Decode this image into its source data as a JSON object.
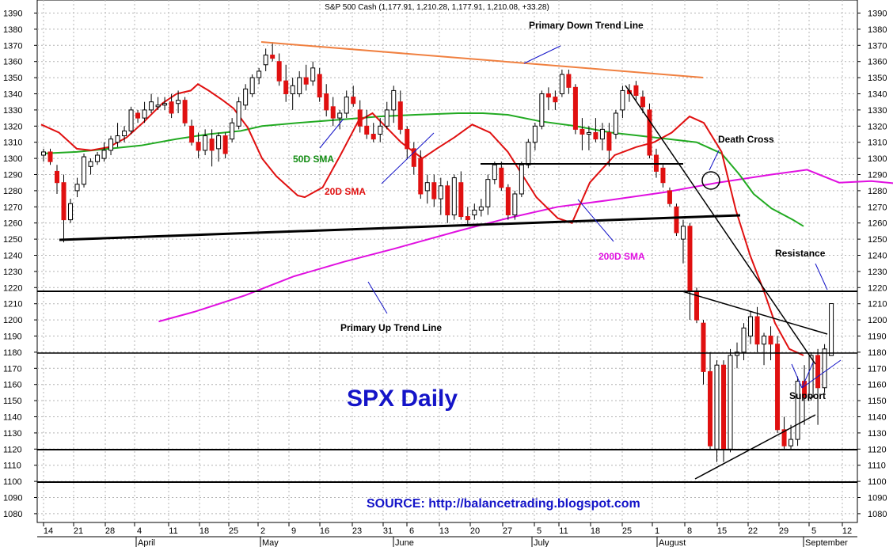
{
  "chart_data": {
    "type": "candlestick",
    "title": "S&P 500 Cash (1,177.91, 1,210.28, 1,177.91, 1,210.08, +33.28)",
    "headline": "SPX Daily",
    "source": "SOURCE: http://balancetrading.blogspot.com",
    "y_ticks": [
      1080,
      1090,
      1100,
      1110,
      1120,
      1130,
      1140,
      1150,
      1160,
      1170,
      1180,
      1190,
      1200,
      1210,
      1220,
      1230,
      1240,
      1250,
      1260,
      1270,
      1280,
      1290,
      1300,
      1310,
      1320,
      1330,
      1340,
      1350,
      1360,
      1370,
      1380,
      1390
    ],
    "ylim": [
      1075,
      1395
    ],
    "x_day_labels": [
      "14",
      "21",
      "28",
      "4",
      "11",
      "18",
      "25",
      "2",
      "9",
      "16",
      "23",
      "31",
      "6",
      "13",
      "20",
      "27",
      "5",
      "11",
      "18",
      "25",
      "1",
      "8",
      "15",
      "22",
      "29",
      "5",
      "12"
    ],
    "month_labels": [
      "April",
      "May",
      "June",
      "July",
      "August",
      "September"
    ],
    "grid": true,
    "candles": [
      [
        1302,
        1306,
        1298,
        1304
      ],
      [
        1304,
        1306,
        1296,
        1298
      ],
      [
        1292,
        1296,
        1278,
        1285
      ],
      [
        1285,
        1290,
        1248,
        1262
      ],
      [
        1262,
        1275,
        1260,
        1272
      ],
      [
        1280,
        1288,
        1276,
        1284
      ],
      [
        1284,
        1303,
        1282,
        1301
      ],
      [
        1295,
        1300,
        1290,
        1298
      ],
      [
        1298,
        1304,
        1296,
        1302
      ],
      [
        1300,
        1310,
        1298,
        1305
      ],
      [
        1305,
        1314,
        1302,
        1312
      ],
      [
        1310,
        1322,
        1307,
        1314
      ],
      [
        1314,
        1320,
        1310,
        1317
      ],
      [
        1317,
        1332,
        1315,
        1330
      ],
      [
        1328,
        1330,
        1322,
        1325
      ],
      [
        1325,
        1335,
        1322,
        1330
      ],
      [
        1330,
        1340,
        1328,
        1335
      ],
      [
        1332,
        1338,
        1330,
        1333
      ],
      [
        1333,
        1338,
        1330,
        1334
      ],
      [
        1335,
        1340,
        1325,
        1328
      ],
      [
        1334,
        1342,
        1328,
        1336
      ],
      [
        1336,
        1338,
        1320,
        1322
      ],
      [
        1320,
        1324,
        1308,
        1310
      ],
      [
        1310,
        1316,
        1300,
        1305
      ],
      [
        1305,
        1318,
        1302,
        1314
      ],
      [
        1312,
        1318,
        1295,
        1305
      ],
      [
        1306,
        1316,
        1298,
        1314
      ],
      [
        1314,
        1316,
        1300,
        1303
      ],
      [
        1312,
        1325,
        1310,
        1322
      ],
      [
        1320,
        1338,
        1318,
        1335
      ],
      [
        1333,
        1346,
        1330,
        1343
      ],
      [
        1340,
        1352,
        1338,
        1350
      ],
      [
        1350,
        1356,
        1346,
        1354
      ],
      [
        1358,
        1368,
        1354,
        1364
      ],
      [
        1364,
        1372,
        1360,
        1362
      ],
      [
        1360,
        1365,
        1345,
        1348
      ],
      [
        1348,
        1358,
        1335,
        1340
      ],
      [
        1340,
        1350,
        1330,
        1345
      ],
      [
        1340,
        1354,
        1338,
        1350
      ],
      [
        1350,
        1358,
        1342,
        1346
      ],
      [
        1348,
        1360,
        1345,
        1356
      ],
      [
        1352,
        1356,
        1335,
        1338
      ],
      [
        1340,
        1346,
        1326,
        1330
      ],
      [
        1332,
        1338,
        1320,
        1325
      ],
      [
        1325,
        1330,
        1318,
        1328
      ],
      [
        1328,
        1342,
        1325,
        1338
      ],
      [
        1338,
        1345,
        1332,
        1334
      ],
      [
        1330,
        1336,
        1316,
        1320
      ],
      [
        1320,
        1330,
        1312,
        1315
      ],
      [
        1315,
        1322,
        1310,
        1312
      ],
      [
        1315,
        1325,
        1310,
        1320
      ],
      [
        1320,
        1335,
        1318,
        1330
      ],
      [
        1330,
        1345,
        1322,
        1342
      ],
      [
        1335,
        1342,
        1315,
        1318
      ],
      [
        1318,
        1320,
        1300,
        1306
      ],
      [
        1306,
        1310,
        1290,
        1295
      ],
      [
        1300,
        1305,
        1275,
        1278
      ],
      [
        1280,
        1290,
        1272,
        1285
      ],
      [
        1285,
        1290,
        1270,
        1275
      ],
      [
        1275,
        1288,
        1265,
        1283
      ],
      [
        1283,
        1286,
        1260,
        1265
      ],
      [
        1265,
        1290,
        1262,
        1288
      ],
      [
        1285,
        1292,
        1262,
        1264
      ],
      [
        1264,
        1270,
        1258,
        1262
      ],
      [
        1265,
        1272,
        1262,
        1268
      ],
      [
        1268,
        1275,
        1264,
        1270
      ],
      [
        1270,
        1290,
        1265,
        1287
      ],
      [
        1287,
        1298,
        1284,
        1296
      ],
      [
        1294,
        1298,
        1280,
        1282
      ],
      [
        1282,
        1284,
        1262,
        1265
      ],
      [
        1265,
        1280,
        1262,
        1278
      ],
      [
        1278,
        1298,
        1276,
        1296
      ],
      [
        1296,
        1312,
        1294,
        1310
      ],
      [
        1310,
        1322,
        1305,
        1320
      ],
      [
        1320,
        1342,
        1318,
        1340
      ],
      [
        1340,
        1344,
        1330,
        1338
      ],
      [
        1338,
        1342,
        1330,
        1335
      ],
      [
        1340,
        1355,
        1338,
        1352
      ],
      [
        1352,
        1355,
        1340,
        1344
      ],
      [
        1344,
        1346,
        1315,
        1318
      ],
      [
        1318,
        1325,
        1305,
        1315
      ],
      [
        1315,
        1320,
        1305,
        1316
      ],
      [
        1316,
        1325,
        1310,
        1312
      ],
      [
        1312,
        1322,
        1305,
        1318
      ],
      [
        1316,
        1322,
        1295,
        1305
      ],
      [
        1315,
        1330,
        1312,
        1328
      ],
      [
        1330,
        1345,
        1325,
        1342
      ],
      [
        1342,
        1346,
        1335,
        1340
      ],
      [
        1345,
        1348,
        1336,
        1339
      ],
      [
        1338,
        1342,
        1328,
        1332
      ],
      [
        1330,
        1334,
        1300,
        1302
      ],
      [
        1302,
        1306,
        1288,
        1292
      ],
      [
        1294,
        1296,
        1282,
        1285
      ],
      [
        1280,
        1282,
        1270,
        1272
      ],
      [
        1270,
        1272,
        1252,
        1254
      ],
      [
        1250,
        1262,
        1235,
        1258
      ],
      [
        1258,
        1260,
        1200,
        1218
      ],
      [
        1218,
        1220,
        1198,
        1200
      ],
      [
        1198,
        1200,
        1160,
        1168
      ],
      [
        1168,
        1180,
        1120,
        1122
      ],
      [
        1120,
        1175,
        1112,
        1172
      ],
      [
        1172,
        1175,
        1112,
        1120
      ],
      [
        1120,
        1182,
        1118,
        1178
      ],
      [
        1178,
        1186,
        1170,
        1180
      ],
      [
        1180,
        1198,
        1175,
        1195
      ],
      [
        1190,
        1205,
        1185,
        1202
      ],
      [
        1202,
        1208,
        1180,
        1185
      ],
      [
        1185,
        1192,
        1172,
        1190
      ],
      [
        1190,
        1196,
        1175,
        1185
      ],
      [
        1185,
        1190,
        1130,
        1132
      ],
      [
        1132,
        1140,
        1120,
        1122
      ],
      [
        1122,
        1135,
        1120,
        1126
      ],
      [
        1126,
        1165,
        1122,
        1162
      ],
      [
        1162,
        1172,
        1135,
        1152
      ],
      [
        1152,
        1180,
        1150,
        1178
      ],
      [
        1178,
        1182,
        1135,
        1158
      ],
      [
        1158,
        1185,
        1155,
        1182
      ],
      [
        1177.91,
        1210.28,
        1177.91,
        1210.08
      ]
    ],
    "sma20": [
      [
        0,
        1321
      ],
      [
        5,
        1316
      ],
      [
        10,
        1306
      ],
      [
        14,
        1305
      ],
      [
        19,
        1307
      ],
      [
        24,
        1313
      ],
      [
        29,
        1323
      ],
      [
        34,
        1334
      ],
      [
        38,
        1340
      ],
      [
        42,
        1342
      ],
      [
        44,
        1346
      ],
      [
        47,
        1342
      ],
      [
        51,
        1336
      ],
      [
        54,
        1331
      ],
      [
        58,
        1319
      ],
      [
        62,
        1300
      ],
      [
        66,
        1289
      ],
      [
        72,
        1277
      ],
      [
        74,
        1276
      ],
      [
        79,
        1282
      ],
      [
        84,
        1302
      ],
      [
        89,
        1323
      ],
      [
        93,
        1328
      ],
      [
        97,
        1319
      ],
      [
        101,
        1310
      ],
      [
        107,
        1300
      ],
      [
        111,
        1306
      ],
      [
        116,
        1313
      ],
      [
        121,
        1321
      ],
      [
        126,
        1316
      ],
      [
        131,
        1304
      ],
      [
        135,
        1290
      ],
      [
        139,
        1276
      ],
      [
        145,
        1263
      ],
      [
        149,
        1260
      ],
      [
        154,
        1285
      ],
      [
        161,
        1302
      ],
      [
        167,
        1307
      ],
      [
        172,
        1310
      ],
      [
        177,
        1316
      ],
      [
        182,
        1326
      ],
      [
        186,
        1322
      ],
      [
        191,
        1304
      ],
      [
        195,
        1268
      ],
      [
        199,
        1240
      ],
      [
        203,
        1217
      ],
      [
        206,
        1198
      ],
      [
        210,
        1182
      ],
      [
        214,
        1178
      ]
    ],
    "sma50": [
      [
        0,
        1303
      ],
      [
        10,
        1304
      ],
      [
        19,
        1306
      ],
      [
        28,
        1308
      ],
      [
        38,
        1312
      ],
      [
        47,
        1315
      ],
      [
        56,
        1317
      ],
      [
        62,
        1320
      ],
      [
        72,
        1322
      ],
      [
        84,
        1324
      ],
      [
        95,
        1326
      ],
      [
        105,
        1327
      ],
      [
        117,
        1328
      ],
      [
        124,
        1328
      ],
      [
        131,
        1327
      ],
      [
        140,
        1323
      ],
      [
        150,
        1320
      ],
      [
        160,
        1316
      ],
      [
        168,
        1314
      ],
      [
        176,
        1312
      ],
      [
        184,
        1310
      ],
      [
        191,
        1303
      ],
      [
        196,
        1290
      ],
      [
        200,
        1278
      ],
      [
        205,
        1269
      ],
      [
        211,
        1262
      ],
      [
        214,
        1258
      ]
    ],
    "sma200": [
      [
        0,
        1199
      ],
      [
        10,
        1205
      ],
      [
        24,
        1215
      ],
      [
        38,
        1227
      ],
      [
        52,
        1236
      ],
      [
        66,
        1244
      ],
      [
        84,
        1255
      ],
      [
        98,
        1263
      ],
      [
        112,
        1270
      ],
      [
        126,
        1274
      ],
      [
        142,
        1279
      ],
      [
        157,
        1285
      ],
      [
        172,
        1290
      ],
      [
        182,
        1293
      ],
      [
        191,
        1285
      ],
      [
        200,
        1286
      ],
      [
        214,
        1283
      ]
    ],
    "annotations": [
      {
        "label": "Primary Down Trend Line",
        "color": "#000000"
      },
      {
        "label": "Death Cross",
        "color": "#000000"
      },
      {
        "label": "50D SMA",
        "color": "#138c13"
      },
      {
        "label": "20D SMA",
        "color": "#e01010"
      },
      {
        "label": "200D SMA",
        "color": "#e010e0"
      },
      {
        "label": "Resistance",
        "color": "#000000"
      },
      {
        "label": "Primary Up Trend Line",
        "color": "#000000"
      },
      {
        "label": "Support",
        "color": "#000000"
      }
    ],
    "colors": {
      "up": "#ffffff",
      "down": "#e01010",
      "sma20": "#e01010",
      "sma50": "#22aa22",
      "sma200": "#e010e0",
      "down_trend": "#f08040",
      "ann": "#1414c8"
    }
  }
}
